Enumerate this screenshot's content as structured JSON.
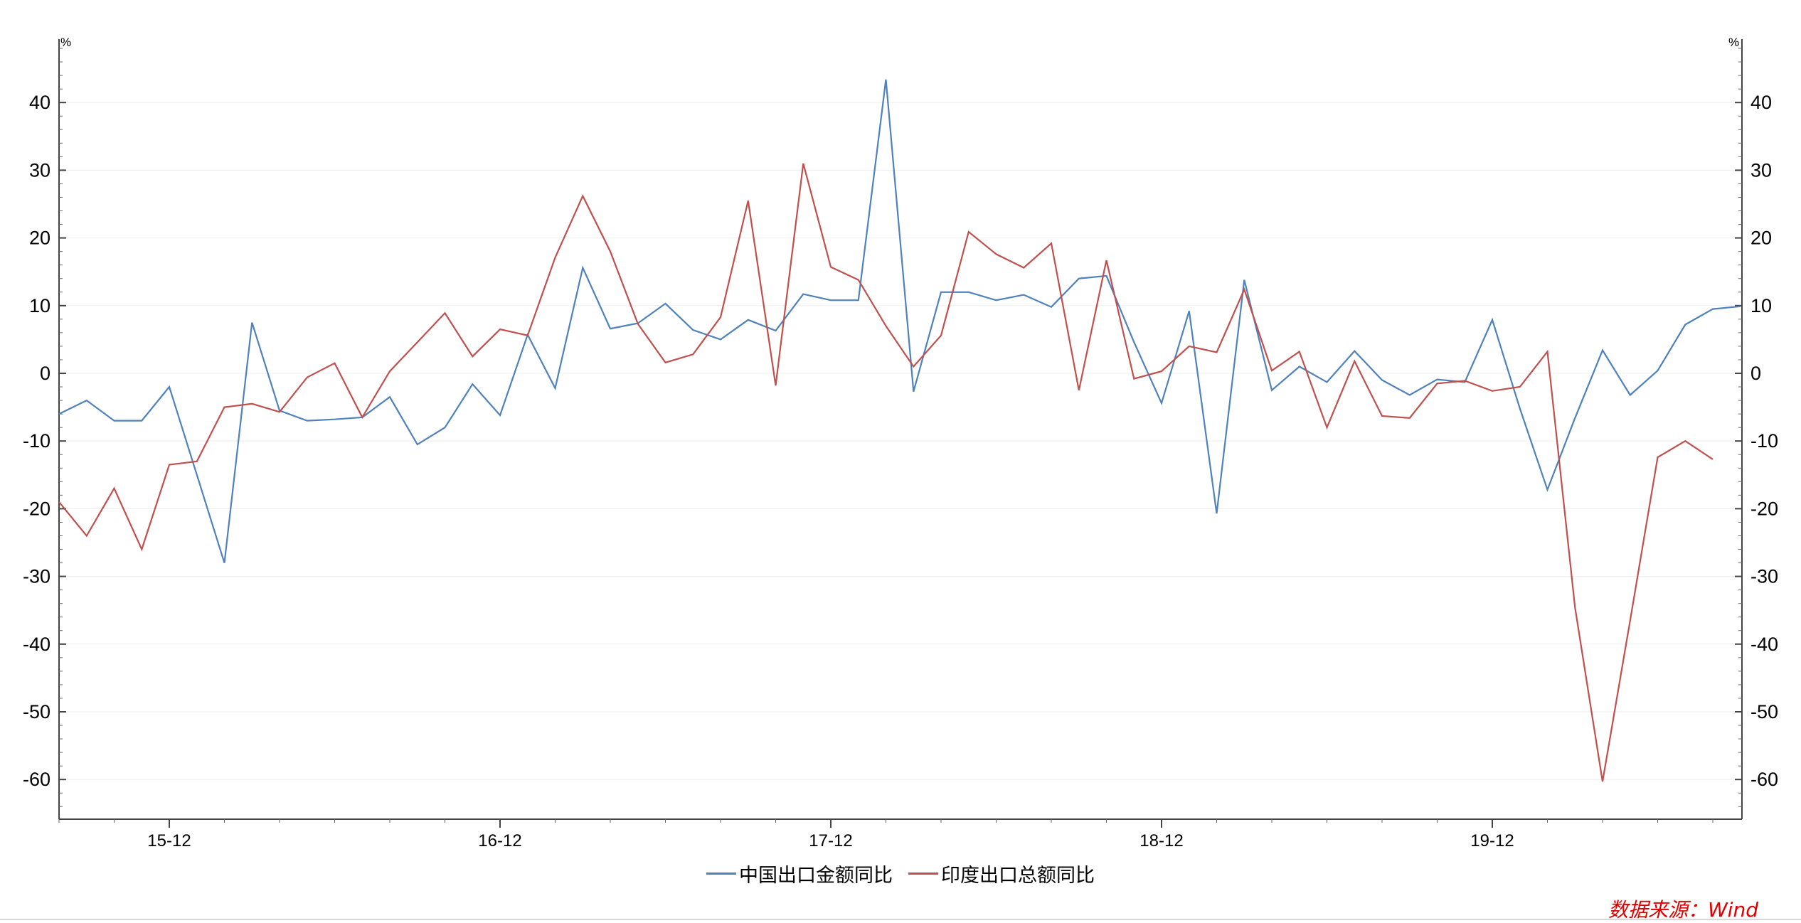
{
  "chart_data": {
    "type": "line",
    "y_unit_left": "%",
    "y_unit_right": "%",
    "ylim": [
      -65,
      50
    ],
    "yticks": [
      40,
      30,
      20,
      10,
      0,
      -10,
      -20,
      -30,
      -40,
      -50,
      -60
    ],
    "ytick_labels": [
      "40",
      "30",
      "20",
      "10",
      "0",
      "-10",
      "-20",
      "-30",
      "-40",
      "-50",
      "-60"
    ],
    "x_tick_labels": [
      "15-12",
      "16-12",
      "17-12",
      "18-12",
      "19-12"
    ],
    "x_tick_months": [
      4,
      16,
      28,
      40,
      52
    ],
    "months": [
      "2015-08",
      "2015-09",
      "2015-10",
      "2015-11",
      "2015-12",
      "2016-01",
      "2016-02",
      "2016-03",
      "2016-04",
      "2016-05",
      "2016-06",
      "2016-07",
      "2016-08",
      "2016-09",
      "2016-10",
      "2016-11",
      "2016-12",
      "2017-01",
      "2017-02",
      "2017-03",
      "2017-04",
      "2017-05",
      "2017-06",
      "2017-07",
      "2017-08",
      "2017-09",
      "2017-10",
      "2017-11",
      "2017-12",
      "2018-01",
      "2018-02",
      "2018-03",
      "2018-04",
      "2018-05",
      "2018-06",
      "2018-07",
      "2018-08",
      "2018-09",
      "2018-10",
      "2018-11",
      "2018-12",
      "2019-01",
      "2019-02",
      "2019-03",
      "2019-04",
      "2019-05",
      "2019-06",
      "2019-07",
      "2019-08",
      "2019-09",
      "2019-10",
      "2019-11",
      "2019-12",
      "2020-01",
      "2020-02",
      "2020-03",
      "2020-04",
      "2020-05",
      "2020-06",
      "2020-07",
      "2020-08",
      "2020-09"
    ],
    "series": [
      {
        "name": "中国出口金额同比",
        "color": "#4f81bd",
        "values": [
          -6,
          -4,
          -7,
          -7,
          -2,
          -15,
          -28,
          7.5,
          -5.5,
          -7,
          -6.8,
          -6.5,
          -3.5,
          -10.5,
          -8,
          -1.6,
          -6.2,
          5.7,
          -2.2,
          15.6,
          6.6,
          7.4,
          10.3,
          6.4,
          5,
          7.9,
          6.3,
          11.7,
          10.8,
          10.8,
          43.4,
          -2.7,
          12,
          12,
          10.8,
          11.6,
          9.8,
          14,
          14.4,
          4.6,
          -4.4,
          9.2,
          -20.7,
          13.8,
          -2.5,
          1,
          -1.3,
          3.3,
          -1,
          -3.2,
          -0.9,
          -1.3,
          7.9,
          -5.2,
          -17.2,
          -6.6,
          3.4,
          -3.2,
          0.4,
          7.2,
          9.5,
          9.9
        ]
      },
      {
        "name": "印度出口总额同比",
        "color": "#c0504d",
        "values": [
          -19,
          -24,
          -17,
          -26,
          -13.5,
          -13,
          -5,
          -4.5,
          -5.7,
          -0.6,
          1.5,
          -6.5,
          0.3,
          4.6,
          8.9,
          2.5,
          6.5,
          5.6,
          17.1,
          26.2,
          18,
          7.3,
          1.6,
          2.8,
          8.3,
          25.5,
          -1.8,
          31,
          15.7,
          13.8,
          7,
          1,
          5.6,
          20.9,
          17.6,
          15.6,
          19.2,
          -2.5,
          16.7,
          -0.8,
          0.3,
          4,
          3.1,
          12.4,
          0.4,
          3.2,
          -8,
          1.8,
          -6.3,
          -6.6,
          -1.5,
          -1.1,
          -2.6,
          -2,
          3.2,
          -34.6,
          -60.3,
          -36.5,
          -12.4,
          -10,
          -12.7
        ]
      }
    ]
  },
  "legend": {
    "china_label": "中国出口金额同比",
    "india_label": "印度出口总额同比"
  },
  "source_text": "数据来源：Wind"
}
